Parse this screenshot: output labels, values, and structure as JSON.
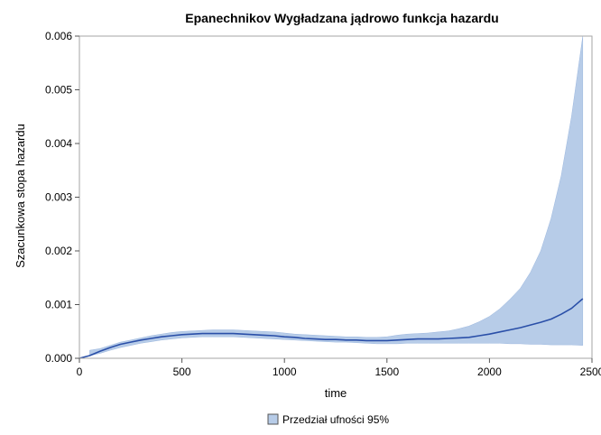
{
  "chart_data": {
    "type": "line",
    "title": "Epanechnikov Wygładzana jądrowo funkcja hazardu",
    "xlabel": "time",
    "ylabel": "Szacunkowa stopa hazardu",
    "xlim": [
      0,
      2500
    ],
    "ylim": [
      0,
      0.006
    ],
    "x_ticks": [
      0,
      500,
      1000,
      1500,
      2000,
      2500
    ],
    "x_tick_labels": [
      "0",
      "500",
      "1000",
      "1500",
      "2000",
      "2500"
    ],
    "y_ticks": [
      0,
      0.001,
      0.002,
      0.003,
      0.004,
      0.005,
      0.006
    ],
    "y_tick_labels": [
      "0.000",
      "0.001",
      "0.002",
      "0.003",
      "0.004",
      "0.005",
      "0.006"
    ],
    "grid": false,
    "legend": {
      "position": "bottom",
      "entries": [
        "Przedział ufności 95%"
      ]
    },
    "colors": {
      "line": "#2a4fa8",
      "band": "#b7cce8",
      "band_edge": "#9db8df"
    },
    "series": [
      {
        "type": "line",
        "x": [
          0,
          50,
          100,
          150,
          200,
          250,
          300,
          350,
          400,
          450,
          500,
          550,
          600,
          650,
          700,
          750,
          800,
          850,
          900,
          950,
          1000,
          1050,
          1100,
          1150,
          1200,
          1250,
          1300,
          1350,
          1400,
          1450,
          1500,
          1550,
          1600,
          1650,
          1700,
          1750,
          1800,
          1850,
          1900,
          1950,
          2000,
          2050,
          2100,
          2150,
          2200,
          2250,
          2300,
          2350,
          2400,
          2455
        ],
        "y": [
          0.0,
          5e-05,
          0.00013,
          0.0002,
          0.00026,
          0.0003,
          0.00034,
          0.00037,
          0.0004,
          0.00042,
          0.00044,
          0.00045,
          0.00046,
          0.00046,
          0.00046,
          0.00046,
          0.00045,
          0.00044,
          0.00043,
          0.00042,
          0.0004,
          0.00039,
          0.00037,
          0.00036,
          0.00035,
          0.00035,
          0.00034,
          0.00034,
          0.00033,
          0.00033,
          0.00033,
          0.00034,
          0.00035,
          0.00036,
          0.00036,
          0.00036,
          0.00037,
          0.00038,
          0.00039,
          0.00042,
          0.00045,
          0.00049,
          0.00053,
          0.00057,
          0.00062,
          0.00067,
          0.00073,
          0.00082,
          0.00093,
          0.00111
        ]
      },
      {
        "type": "band",
        "name": "Przedział ufności 95%",
        "x": [
          50,
          100,
          150,
          200,
          250,
          300,
          350,
          400,
          450,
          500,
          550,
          600,
          650,
          700,
          750,
          800,
          850,
          900,
          950,
          1000,
          1050,
          1100,
          1150,
          1200,
          1250,
          1300,
          1350,
          1400,
          1450,
          1500,
          1550,
          1600,
          1650,
          1700,
          1750,
          1800,
          1850,
          1900,
          1950,
          2000,
          2050,
          2100,
          2150,
          2200,
          2250,
          2300,
          2350,
          2400,
          2455
        ],
        "lower": [
          5e-05,
          9e-05,
          0.00015,
          0.0002,
          0.00024,
          0.00028,
          0.00031,
          0.00034,
          0.00036,
          0.00038,
          0.00039,
          0.0004,
          0.0004,
          0.0004,
          0.0004,
          0.00039,
          0.00038,
          0.00037,
          0.00036,
          0.00035,
          0.00034,
          0.00033,
          0.00032,
          0.00031,
          0.0003,
          0.0003,
          0.00029,
          0.00028,
          0.00027,
          0.00027,
          0.00027,
          0.00028,
          0.00028,
          0.00028,
          0.00028,
          0.00028,
          0.00028,
          0.00028,
          0.00028,
          0.00028,
          0.00028,
          0.00027,
          0.00027,
          0.00026,
          0.00026,
          0.00025,
          0.00025,
          0.00025,
          0.00024
        ],
        "upper": [
          0.00015,
          0.00018,
          0.00024,
          0.0003,
          0.00034,
          0.00038,
          0.00042,
          0.00045,
          0.00048,
          0.0005,
          0.00051,
          0.00052,
          0.00053,
          0.00053,
          0.00053,
          0.00052,
          0.00051,
          0.0005,
          0.00049,
          0.00047,
          0.00045,
          0.00044,
          0.00043,
          0.00042,
          0.00041,
          0.0004,
          0.0004,
          0.00039,
          0.00039,
          0.0004,
          0.00043,
          0.00045,
          0.00046,
          0.00047,
          0.00049,
          0.00051,
          0.00055,
          0.0006,
          0.00068,
          0.00078,
          0.00092,
          0.0011,
          0.0013,
          0.0016,
          0.002,
          0.0026,
          0.0034,
          0.0045,
          0.006
        ]
      }
    ]
  }
}
